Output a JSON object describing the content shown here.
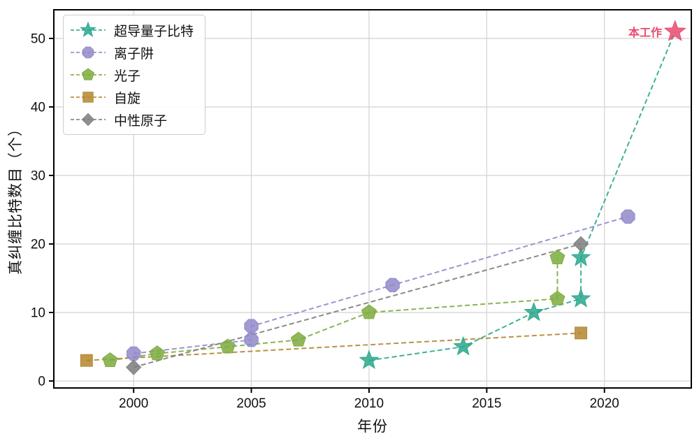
{
  "chart_data": {
    "type": "line",
    "title": "",
    "xlabel": "年份",
    "ylabel": "真纠缠比特数目（个）",
    "xlim": [
      1996.61,
      2023.69
    ],
    "ylim": [
      -1.02,
      54.18
    ],
    "xticks": [
      2000,
      2005,
      2010,
      2015,
      2020
    ],
    "yticks": [
      0,
      10,
      20,
      30,
      40,
      50
    ],
    "grid": true,
    "legend_position": "upper left",
    "colors": {
      "grid": "#d2d2d2",
      "axis": "#000000",
      "tick_label": "#111111",
      "background": "#ffffff"
    },
    "series": [
      {
        "name": "超导量子比特",
        "marker": "star",
        "color": "#2aa78c",
        "points": [
          [
            2010,
            3
          ],
          [
            2014,
            5
          ],
          [
            2017,
            10
          ],
          [
            2019,
            12
          ],
          [
            2019,
            18
          ]
        ],
        "line_extends_to": [
          2023,
          51
        ]
      },
      {
        "name": "离子阱",
        "marker": "octagon",
        "color": "#9089ca",
        "points": [
          [
            2000,
            4
          ],
          [
            2005,
            6
          ],
          [
            2005,
            8
          ],
          [
            2011,
            14
          ],
          [
            2021,
            24
          ]
        ]
      },
      {
        "name": "光子",
        "marker": "pentagon",
        "color": "#7dac3e",
        "points": [
          [
            1999,
            3
          ],
          [
            2001,
            4
          ],
          [
            2004,
            5
          ],
          [
            2007,
            6
          ],
          [
            2010,
            10
          ],
          [
            2018,
            12
          ],
          [
            2018,
            18
          ]
        ]
      },
      {
        "name": "自旋",
        "marker": "square",
        "color": "#b3862e",
        "points": [
          [
            1998,
            3
          ],
          [
            2019,
            7
          ]
        ]
      },
      {
        "name": "中性原子",
        "marker": "diamond",
        "color": "#7d7d7d",
        "points": [
          [
            2000,
            2
          ],
          [
            2019,
            20
          ]
        ]
      }
    ],
    "annotation": {
      "text": "本工作",
      "x": 2023,
      "y": 51,
      "marker": "star",
      "color": "#e84a6e"
    }
  }
}
